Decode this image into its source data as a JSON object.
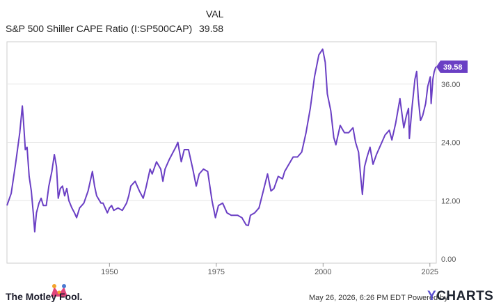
{
  "header": {
    "col_label": "VAL",
    "series_name": "S&P 500 Shiller CAPE Ratio (I:SP500CAP)",
    "series_value": "39.58"
  },
  "footer": {
    "timestamp": "May 26, 2026, 6:26 PM EDT Powered by",
    "brand_y": "Y",
    "brand_rest": "CHARTS",
    "left_brand": "The Motley Fool."
  },
  "colors": {
    "line": "#6a3fc4",
    "badge": "#6a3fc4",
    "grid": "#e6e6e6",
    "frame": "#cccccc"
  },
  "chart_data": {
    "type": "line",
    "xlim": [
      1926,
      2026.5
    ],
    "ylim": [
      0,
      45
    ],
    "x_ticks": [
      {
        "value": 1950,
        "label": "1950"
      },
      {
        "value": 1975,
        "label": "1975"
      },
      {
        "value": 2000,
        "label": "2000"
      },
      {
        "value": 2025,
        "label": "2025"
      }
    ],
    "y_ticks": [
      {
        "value": 0,
        "label": "0.00"
      },
      {
        "value": 12,
        "label": "12.00"
      },
      {
        "value": 24,
        "label": "24.00"
      },
      {
        "value": 36,
        "label": "36.00"
      }
    ],
    "last_value_label": "39.58",
    "grid": true,
    "series": [
      {
        "values": [
          [
            1926.0,
            11.0
          ],
          [
            1927.0,
            13.5
          ],
          [
            1928.0,
            19.5
          ],
          [
            1929.0,
            26.0
          ],
          [
            1929.6,
            31.5
          ],
          [
            1929.9,
            28.0
          ],
          [
            1930.3,
            22.5
          ],
          [
            1930.7,
            23.0
          ],
          [
            1931.2,
            17.0
          ],
          [
            1931.7,
            14.0
          ],
          [
            1932.2,
            9.0
          ],
          [
            1932.5,
            5.6
          ],
          [
            1932.9,
            9.5
          ],
          [
            1933.5,
            11.5
          ],
          [
            1934.0,
            12.5
          ],
          [
            1934.5,
            11.0
          ],
          [
            1935.2,
            11.0
          ],
          [
            1935.8,
            15.0
          ],
          [
            1936.5,
            18.0
          ],
          [
            1937.1,
            21.5
          ],
          [
            1937.6,
            19.0
          ],
          [
            1938.0,
            12.5
          ],
          [
            1938.5,
            14.5
          ],
          [
            1939.0,
            15.0
          ],
          [
            1939.5,
            13.0
          ],
          [
            1940.0,
            14.5
          ],
          [
            1940.5,
            12.0
          ],
          [
            1941.2,
            10.5
          ],
          [
            1941.8,
            9.5
          ],
          [
            1942.3,
            8.5
          ],
          [
            1943.0,
            10.5
          ],
          [
            1944.0,
            11.5
          ],
          [
            1945.0,
            14.0
          ],
          [
            1946.0,
            18.0
          ],
          [
            1946.5,
            15.0
          ],
          [
            1947.0,
            13.0
          ],
          [
            1948.0,
            11.5
          ],
          [
            1948.5,
            11.5
          ],
          [
            1949.5,
            9.5
          ],
          [
            1950.0,
            10.5
          ],
          [
            1950.5,
            11.0
          ],
          [
            1951.0,
            10.0
          ],
          [
            1952.0,
            10.5
          ],
          [
            1953.0,
            10.0
          ],
          [
            1954.0,
            11.5
          ],
          [
            1954.5,
            13.0
          ],
          [
            1955.0,
            15.0
          ],
          [
            1956.0,
            16.0
          ],
          [
            1957.0,
            14.0
          ],
          [
            1957.9,
            12.5
          ],
          [
            1958.5,
            14.5
          ],
          [
            1959.5,
            18.5
          ],
          [
            1960.0,
            17.5
          ],
          [
            1961.0,
            20.0
          ],
          [
            1962.0,
            18.5
          ],
          [
            1962.5,
            16.0
          ],
          [
            1963.0,
            18.5
          ],
          [
            1964.0,
            20.5
          ],
          [
            1965.5,
            23.0
          ],
          [
            1966.0,
            24.0
          ],
          [
            1966.8,
            20.0
          ],
          [
            1967.5,
            22.5
          ],
          [
            1968.5,
            22.5
          ],
          [
            1969.5,
            18.5
          ],
          [
            1970.3,
            15.0
          ],
          [
            1971.0,
            17.5
          ],
          [
            1972.0,
            18.5
          ],
          [
            1973.0,
            18.0
          ],
          [
            1974.0,
            12.0
          ],
          [
            1974.8,
            8.5
          ],
          [
            1975.5,
            11.0
          ],
          [
            1976.5,
            11.5
          ],
          [
            1977.5,
            9.5
          ],
          [
            1978.5,
            9.0
          ],
          [
            1980.0,
            9.0
          ],
          [
            1981.0,
            8.5
          ],
          [
            1982.0,
            7.0
          ],
          [
            1982.5,
            6.9
          ],
          [
            1983.0,
            9.0
          ],
          [
            1984.0,
            9.5
          ],
          [
            1985.0,
            10.5
          ],
          [
            1986.0,
            14.0
          ],
          [
            1987.0,
            17.5
          ],
          [
            1987.8,
            14.0
          ],
          [
            1988.5,
            14.5
          ],
          [
            1989.5,
            17.0
          ],
          [
            1990.5,
            16.5
          ],
          [
            1991.0,
            18.0
          ],
          [
            1992.0,
            19.5
          ],
          [
            1993.0,
            21.0
          ],
          [
            1994.0,
            21.0
          ],
          [
            1995.0,
            22.0
          ],
          [
            1996.0,
            26.0
          ],
          [
            1997.0,
            31.0
          ],
          [
            1998.0,
            37.5
          ],
          [
            1999.0,
            42.0
          ],
          [
            1999.9,
            43.2
          ],
          [
            2000.5,
            40.5
          ],
          [
            2001.0,
            34.0
          ],
          [
            2001.8,
            30.5
          ],
          [
            2002.5,
            25.0
          ],
          [
            2003.0,
            23.5
          ],
          [
            2004.0,
            27.5
          ],
          [
            2005.0,
            26.0
          ],
          [
            2006.0,
            26.0
          ],
          [
            2007.0,
            27.0
          ],
          [
            2007.6,
            24.0
          ],
          [
            2008.3,
            22.0
          ],
          [
            2008.8,
            17.0
          ],
          [
            2009.2,
            13.3
          ],
          [
            2009.7,
            19.0
          ],
          [
            2010.3,
            21.0
          ],
          [
            2011.0,
            23.0
          ],
          [
            2011.7,
            19.5
          ],
          [
            2012.5,
            21.5
          ],
          [
            2013.5,
            23.5
          ],
          [
            2014.5,
            25.5
          ],
          [
            2015.5,
            26.5
          ],
          [
            2016.1,
            24.5
          ],
          [
            2017.0,
            28.0
          ],
          [
            2018.0,
            33.0
          ],
          [
            2018.9,
            27.0
          ],
          [
            2019.5,
            29.5
          ],
          [
            2020.0,
            31.0
          ],
          [
            2020.2,
            24.8
          ],
          [
            2020.8,
            31.0
          ],
          [
            2021.5,
            37.0
          ],
          [
            2021.9,
            38.6
          ],
          [
            2022.3,
            33.0
          ],
          [
            2022.8,
            28.5
          ],
          [
            2023.3,
            29.5
          ],
          [
            2024.0,
            32.0
          ],
          [
            2024.5,
            35.5
          ],
          [
            2025.1,
            37.5
          ],
          [
            2025.3,
            32.0
          ],
          [
            2025.7,
            37.0
          ],
          [
            2026.0,
            38.5
          ],
          [
            2026.4,
            39.58
          ]
        ]
      }
    ]
  }
}
